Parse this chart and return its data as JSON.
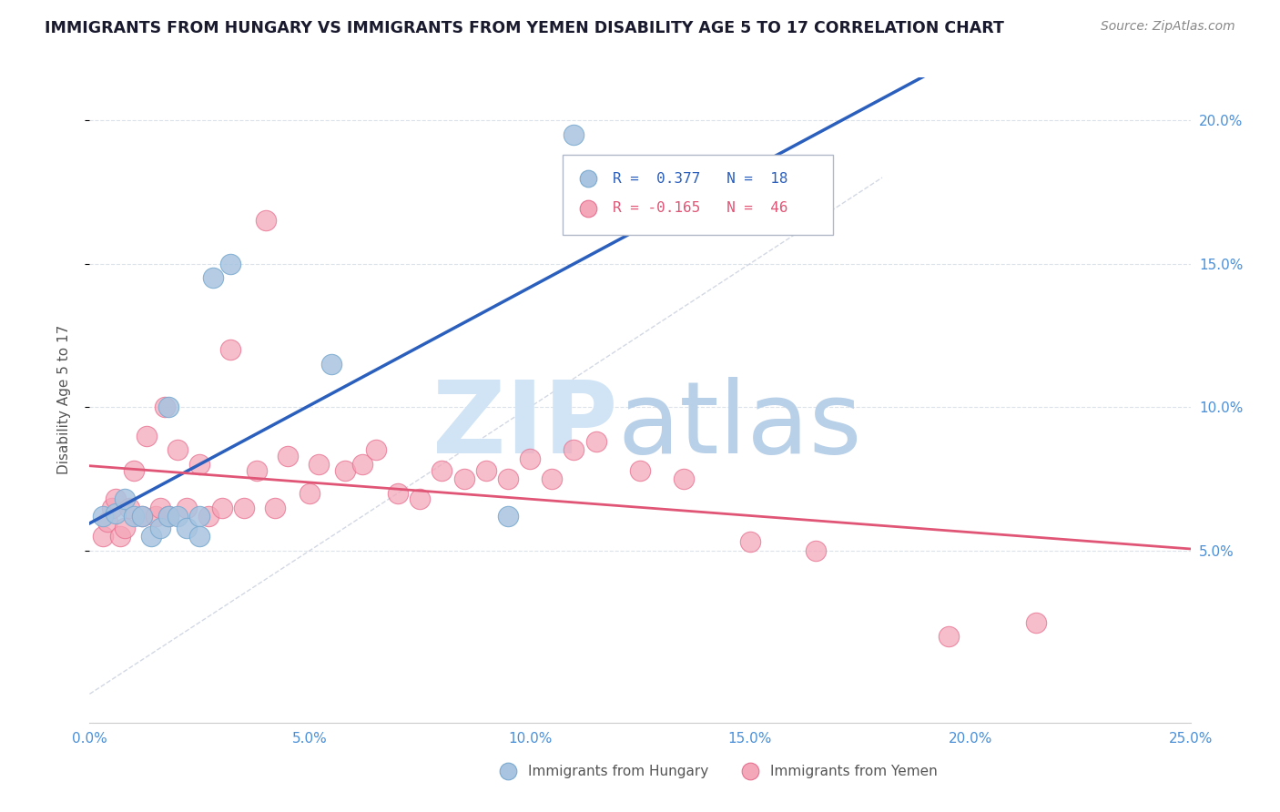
{
  "title": "IMMIGRANTS FROM HUNGARY VS IMMIGRANTS FROM YEMEN DISABILITY AGE 5 TO 17 CORRELATION CHART",
  "source": "Source: ZipAtlas.com",
  "ylabel": "Disability Age 5 to 17",
  "xlim": [
    0.0,
    0.25
  ],
  "ylim": [
    -0.01,
    0.215
  ],
  "xtick_vals": [
    0.0,
    0.05,
    0.1,
    0.15,
    0.2,
    0.25
  ],
  "xtick_labels": [
    "0.0%",
    "5.0%",
    "10.0%",
    "15.0%",
    "20.0%",
    "25.0%"
  ],
  "ytick_vals": [
    0.05,
    0.1,
    0.15,
    0.2
  ],
  "ytick_labels": [
    "5.0%",
    "10.0%",
    "15.0%",
    "20.0%"
  ],
  "hungary_R": 0.377,
  "hungary_N": 18,
  "yemen_R": -0.165,
  "yemen_N": 46,
  "hungary_color": "#a8c4e0",
  "hungary_edge_color": "#7aaad0",
  "yemen_color": "#f4a7b9",
  "yemen_edge_color": "#e87090",
  "hungary_line_color": "#2b5fbd",
  "yemen_line_color": "#e05575",
  "ref_line_color": "#c0c8d8",
  "title_color": "#1a1a2e",
  "source_color": "#888888",
  "label_color": "#555555",
  "tick_color": "#4a90d9",
  "grid_color": "#d8dfe8",
  "watermark_zip_color": "#d0e4f5",
  "watermark_atlas_color": "#b8d0e8",
  "hungary_x": [
    0.003,
    0.006,
    0.008,
    0.01,
    0.012,
    0.014,
    0.016,
    0.018,
    0.018,
    0.02,
    0.022,
    0.025,
    0.025,
    0.028,
    0.032,
    0.055,
    0.095,
    0.11
  ],
  "hungary_y": [
    0.062,
    0.063,
    0.068,
    0.062,
    0.062,
    0.055,
    0.058,
    0.062,
    0.1,
    0.062,
    0.058,
    0.062,
    0.055,
    0.145,
    0.15,
    0.115,
    0.062,
    0.195
  ],
  "yemen_x": [
    0.003,
    0.004,
    0.005,
    0.006,
    0.007,
    0.008,
    0.009,
    0.01,
    0.012,
    0.013,
    0.015,
    0.016,
    0.017,
    0.018,
    0.02,
    0.022,
    0.025,
    0.027,
    0.03,
    0.032,
    0.035,
    0.038,
    0.04,
    0.042,
    0.045,
    0.05,
    0.052,
    0.058,
    0.062,
    0.065,
    0.07,
    0.075,
    0.08,
    0.085,
    0.09,
    0.095,
    0.1,
    0.105,
    0.11,
    0.115,
    0.125,
    0.135,
    0.15,
    0.165,
    0.195,
    0.215
  ],
  "yemen_y": [
    0.055,
    0.06,
    0.065,
    0.068,
    0.055,
    0.058,
    0.065,
    0.078,
    0.062,
    0.09,
    0.062,
    0.065,
    0.1,
    0.062,
    0.085,
    0.065,
    0.08,
    0.062,
    0.065,
    0.12,
    0.065,
    0.078,
    0.165,
    0.065,
    0.083,
    0.07,
    0.08,
    0.078,
    0.08,
    0.085,
    0.07,
    0.068,
    0.078,
    0.075,
    0.078,
    0.075,
    0.082,
    0.075,
    0.085,
    0.088,
    0.078,
    0.075,
    0.053,
    0.05,
    0.02,
    0.025
  ]
}
